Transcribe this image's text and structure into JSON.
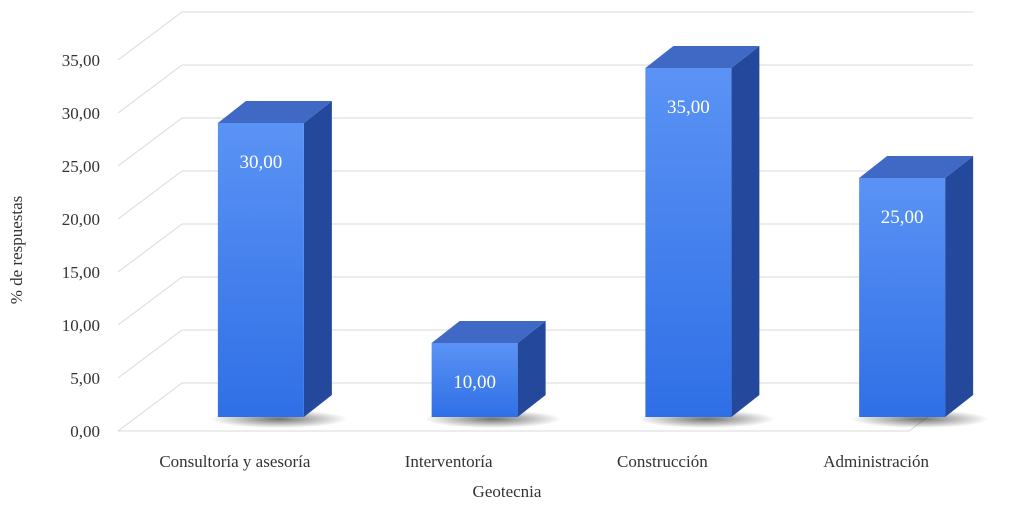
{
  "chart_data": {
    "type": "bar",
    "title": "",
    "xlabel": "Geotecnia",
    "ylabel": "% de respuestas",
    "categories": [
      "Consultoría y asesoría",
      "Interventoría",
      "Construcción",
      "Administración"
    ],
    "values": [
      30,
      10,
      35,
      25
    ],
    "data_labels": [
      "30,00",
      "10,00",
      "35,00",
      "25,00"
    ],
    "y_ticks": [
      0,
      5,
      10,
      15,
      20,
      25,
      30,
      35
    ],
    "y_tick_labels": [
      "0,00",
      "5,00",
      "10,00",
      "15,00",
      "20,00",
      "25,00",
      "30,00",
      "35,00"
    ],
    "ylim": [
      0,
      35
    ],
    "grid": true,
    "style": "3d-column",
    "colors": {
      "bar_front_top": "#5b93f5",
      "bar_front_bottom": "#2f6fe6",
      "bar_top": "#3f69c4",
      "bar_side": "#24489c",
      "grid": "#d9d9d9",
      "text": "#333333",
      "label_inside": "#ffffff"
    }
  }
}
